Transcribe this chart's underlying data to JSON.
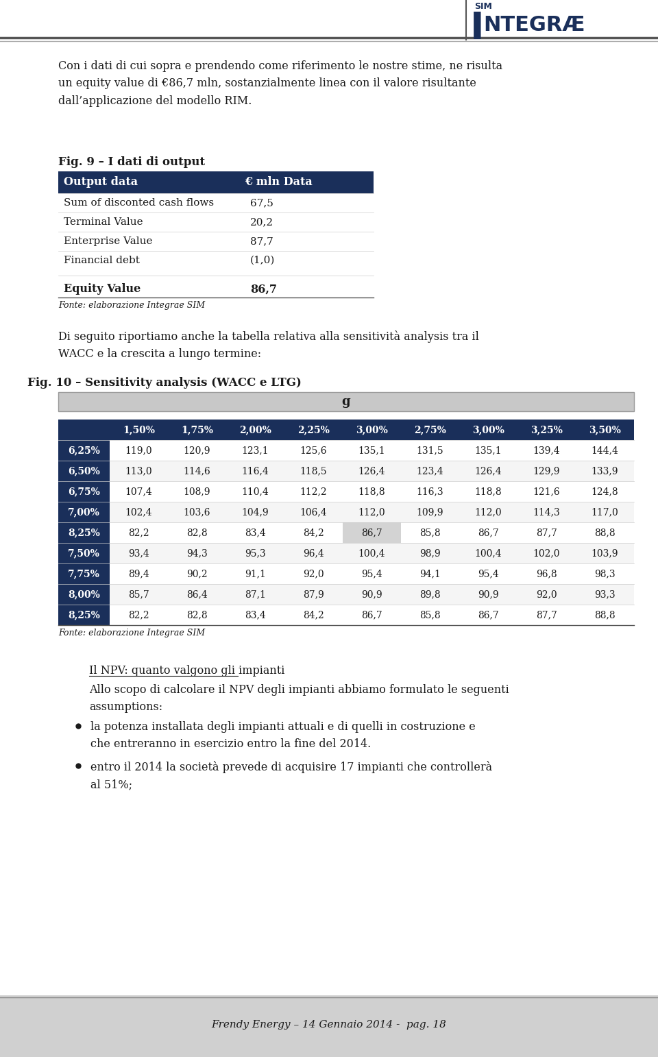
{
  "page_bg": "#ffffff",
  "dark_navy": "#1a2f5a",
  "light_gray_header": "#c8c8c8",
  "highlight_cell_color": "#d3d3d3",
  "body_text_color": "#1a1a1a",
  "para1": "Con i dati di cui sopra e prendendo come riferimento le nostre stime, ne risulta\nun equity value di €86,7 mln, sostanzialmente linea con il valore risultante\ndall’applicazione del modello RIM.",
  "fig9_label": "Fig. 9 – I dati di output",
  "table1_headers": [
    "Output data",
    "€ mln Data"
  ],
  "table1_rows": [
    [
      "Sum of disconted cash flows",
      "67,5"
    ],
    [
      "Terminal Value",
      "20,2"
    ],
    [
      "Enterprise Value",
      "87,7"
    ],
    [
      "Financial debt",
      "(1,0)"
    ]
  ],
  "table1_equity_label": "Equity Value",
  "table1_equity_value": "86,7",
  "table1_fonte": "Fonte: elaborazione Integrae SIM",
  "para2": "Di seguito riportiamo anche la tabella relativa alla sensitività analysis tra il\nWACC e la crescita a lungo termine:",
  "fig10_label": "Fig. 10 – Sensitivity analysis (WACC e LTG)",
  "g_label": "g",
  "table2_col_headers": [
    "",
    "1,50%",
    "1,75%",
    "2,00%",
    "2,25%",
    "3,00%",
    "2,75%",
    "3,00%",
    "3,25%",
    "3,50%"
  ],
  "table2_rows": [
    [
      "6,25%",
      "119,0",
      "120,9",
      "123,1",
      "125,6",
      "135,1",
      "131,5",
      "135,1",
      "139,4",
      "144,4"
    ],
    [
      "6,50%",
      "113,0",
      "114,6",
      "116,4",
      "118,5",
      "126,4",
      "123,4",
      "126,4",
      "129,9",
      "133,9"
    ],
    [
      "6,75%",
      "107,4",
      "108,9",
      "110,4",
      "112,2",
      "118,8",
      "116,3",
      "118,8",
      "121,6",
      "124,8"
    ],
    [
      "7,00%",
      "102,4",
      "103,6",
      "104,9",
      "106,4",
      "112,0",
      "109,9",
      "112,0",
      "114,3",
      "117,0"
    ],
    [
      "8,25%",
      "82,2",
      "82,8",
      "83,4",
      "84,2",
      "86,7",
      "85,8",
      "86,7",
      "87,7",
      "88,8"
    ],
    [
      "7,50%",
      "93,4",
      "94,3",
      "95,3",
      "96,4",
      "100,4",
      "98,9",
      "100,4",
      "102,0",
      "103,9"
    ],
    [
      "7,75%",
      "89,4",
      "90,2",
      "91,1",
      "92,0",
      "95,4",
      "94,1",
      "95,4",
      "96,8",
      "98,3"
    ],
    [
      "8,00%",
      "85,7",
      "86,4",
      "87,1",
      "87,9",
      "90,9",
      "89,8",
      "90,9",
      "92,0",
      "93,3"
    ],
    [
      "8,25%",
      "82,2",
      "82,8",
      "83,4",
      "84,2",
      "86,7",
      "85,8",
      "86,7",
      "87,7",
      "88,8"
    ]
  ],
  "highlight_row": 4,
  "highlight_col": 5,
  "table2_fonte": "Fonte: elaborazione Integrae SIM",
  "para3_underline": "Il NPV: quanto valgono gli impianti",
  "para3": "Allo scopo di calcolare il NPV degli impianti abbiamo formulato le seguenti\nassumptions:",
  "bullet1": "la potenza installata degli impianti attuali e di quelli in costruzione e\nche entreranno in esercizio entro la fine del 2014.",
  "bullet2": "entro il 2014 la società prevede di acquisire 17 impianti che controllerà\nal 51%;",
  "footer_text": "Frendy Energy – 14 Gennaio 2014 -  pag. 18",
  "footer_bg": "#d0d0d0"
}
